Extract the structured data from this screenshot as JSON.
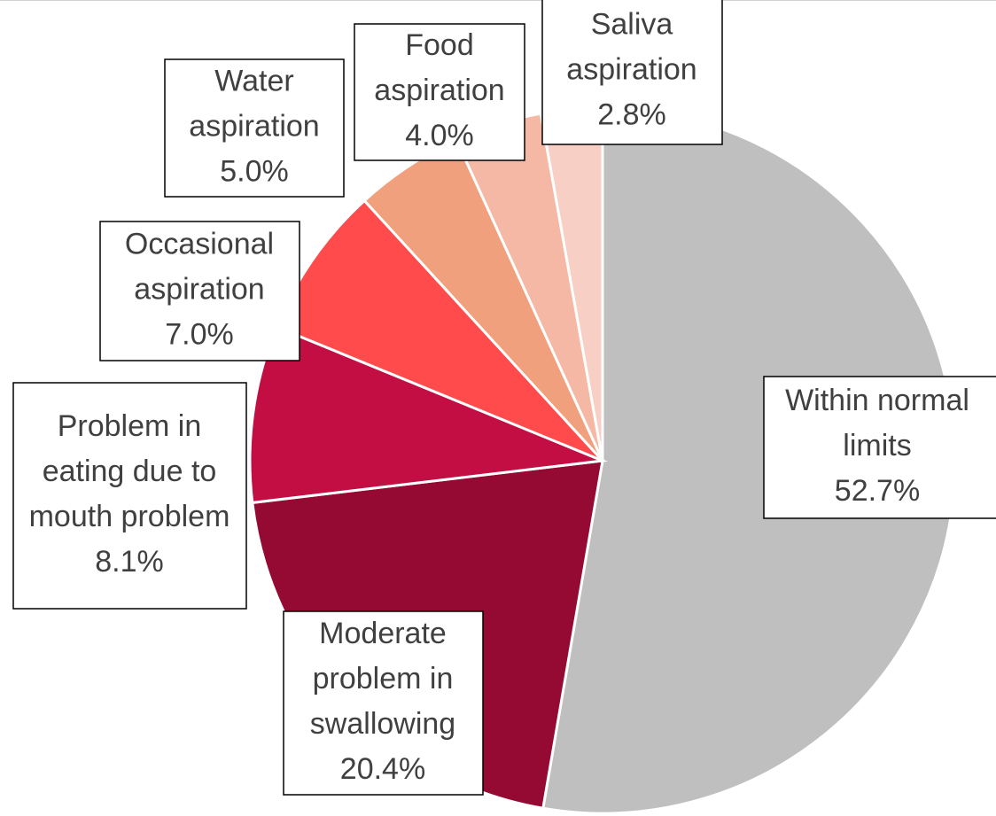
{
  "chart_data": {
    "type": "pie",
    "categories": [
      "Within normal limits",
      "Moderate problem in swallowing",
      "Problem in eating due to mouth problem",
      "Occasional aspiration",
      "Water aspiration",
      "Food aspiration",
      "Saliva aspiration"
    ],
    "values": [
      52.7,
      20.4,
      8.1,
      7.0,
      5.0,
      4.0,
      2.8
    ],
    "value_labels": [
      "52.7%",
      "20.4%",
      "8.1%",
      "7.0%",
      "5.0%",
      "4.0%",
      "2.8%"
    ],
    "colors": [
      "#bfbfbf",
      "#950a32",
      "#c30e43",
      "#ff4b4b",
      "#f0a07c",
      "#f4b8a4",
      "#f8cfc4"
    ]
  }
}
